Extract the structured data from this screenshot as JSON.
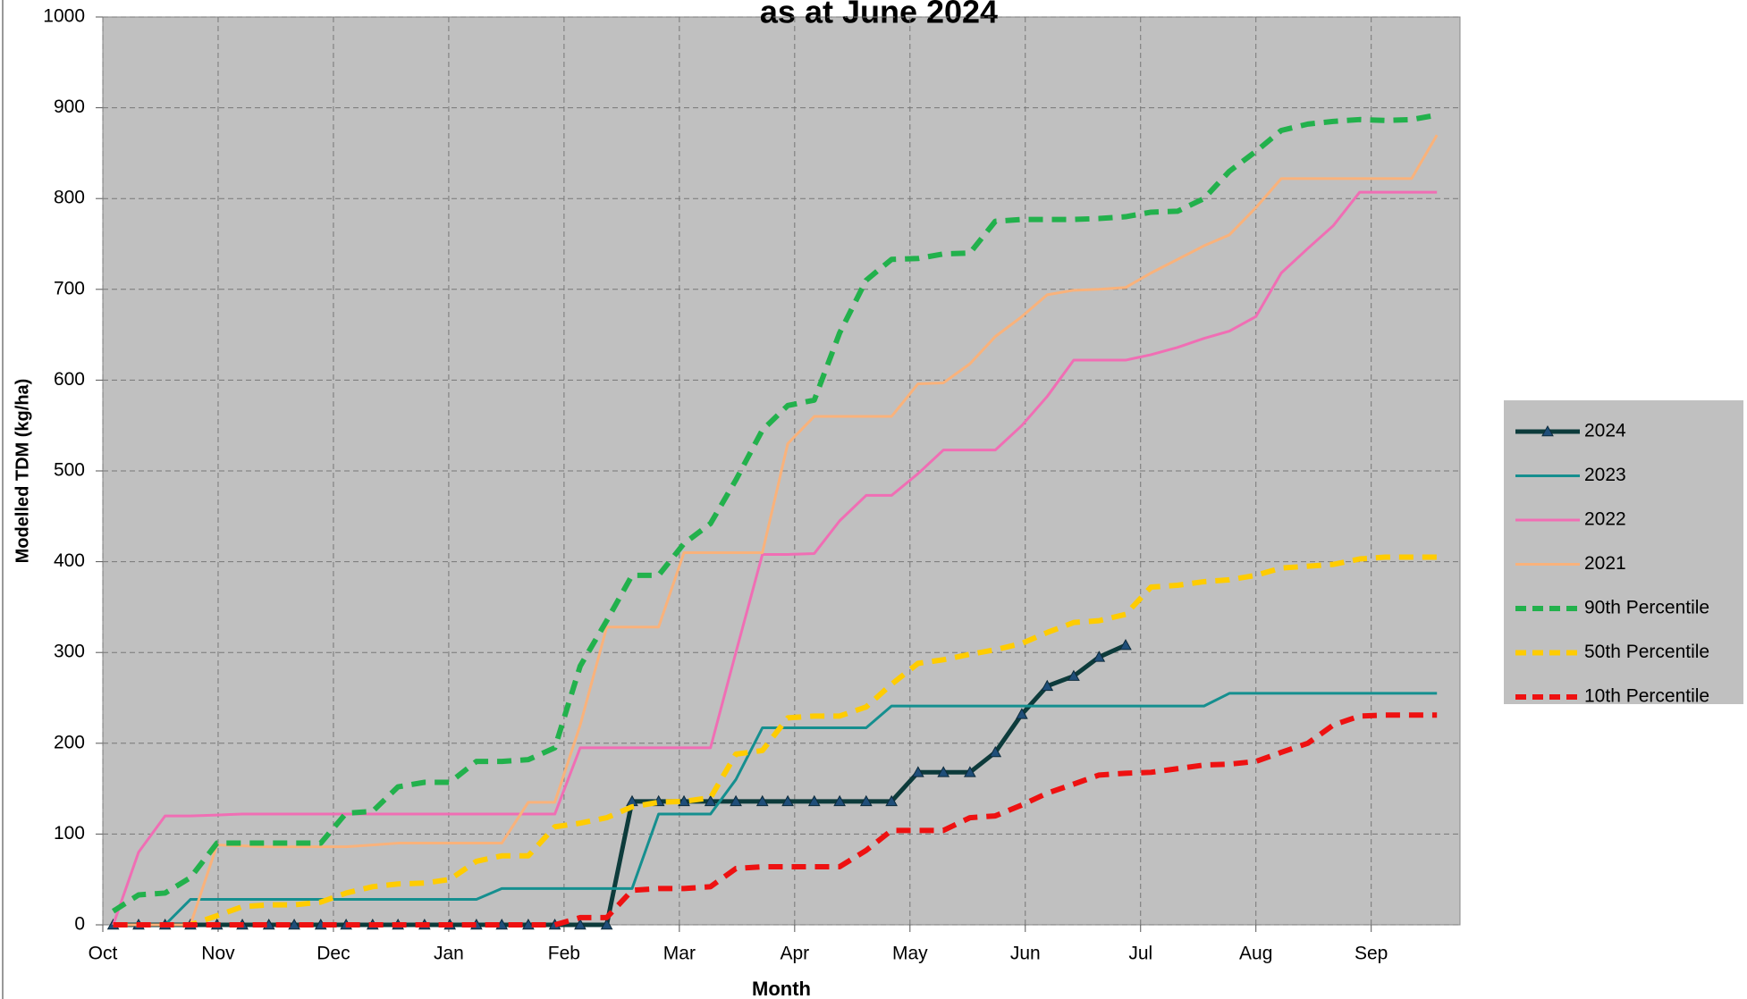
{
  "chart_data": {
    "type": "line",
    "title": "as at June 2024",
    "x_label": "Month",
    "y_label": "Modelled TDM (kg/ha)",
    "x": [
      0.09,
      0.31,
      0.54,
      0.76,
      0.99,
      1.21,
      1.44,
      1.66,
      1.89,
      2.11,
      2.34,
      2.56,
      2.79,
      3.01,
      3.24,
      3.46,
      3.69,
      3.92,
      4.14,
      4.37,
      4.59,
      4.82,
      5.04,
      5.27,
      5.49,
      5.72,
      5.94,
      6.17,
      6.39,
      6.62,
      6.84,
      7.07,
      7.29,
      7.52,
      7.74,
      7.97,
      8.19,
      8.42,
      8.64,
      8.87,
      9.09,
      9.32,
      9.55,
      9.77,
      10.0,
      10.22,
      10.45,
      10.67,
      10.9,
      11.12,
      11.35,
      11.57
    ],
    "xlim": [
      0,
      11.77
    ],
    "xticks": [
      {
        "value": 0,
        "label": "Oct"
      },
      {
        "value": 1,
        "label": "Nov"
      },
      {
        "value": 2,
        "label": "Dec"
      },
      {
        "value": 3,
        "label": "Jan"
      },
      {
        "value": 4,
        "label": "Feb"
      },
      {
        "value": 5,
        "label": "Mar"
      },
      {
        "value": 6,
        "label": "Apr"
      },
      {
        "value": 7,
        "label": "May"
      },
      {
        "value": 8,
        "label": "Jun"
      },
      {
        "value": 9,
        "label": "Jul"
      },
      {
        "value": 10,
        "label": "Aug"
      },
      {
        "value": 11,
        "label": "Sep"
      }
    ],
    "ylim": [
      0,
      1000
    ],
    "yticks": [
      0,
      100,
      200,
      300,
      400,
      500,
      600,
      700,
      800,
      900,
      1000
    ],
    "grid": true,
    "legend": "right",
    "series": [
      {
        "name": "2024",
        "color": "#0d3b3b",
        "width": 5,
        "dash": false,
        "marker": "triangle",
        "marker_color": "#1f4e79",
        "values": [
          0,
          0,
          0,
          0,
          0,
          0,
          0,
          0,
          0,
          0,
          0,
          0,
          0,
          0,
          0,
          0,
          0,
          0,
          0,
          0,
          136,
          136,
          136,
          136,
          136,
          136,
          136,
          136,
          136,
          136,
          136,
          168,
          168,
          168,
          190,
          232,
          263,
          274,
          295,
          308,
          null,
          null,
          null,
          null,
          null,
          null,
          null,
          null,
          null,
          null,
          null,
          null
        ]
      },
      {
        "name": "2023",
        "color": "#158f8f",
        "width": 3,
        "dash": false,
        "values": [
          0,
          0,
          0,
          28,
          28,
          28,
          28,
          28,
          28,
          28,
          28,
          28,
          28,
          28,
          28,
          40,
          40,
          40,
          40,
          40,
          40,
          122,
          122,
          122,
          160,
          217,
          217,
          217,
          217,
          217,
          241,
          241,
          241,
          241,
          241,
          241,
          241,
          241,
          241,
          241,
          241,
          241,
          241,
          255,
          255,
          255,
          255,
          255,
          255,
          255,
          255,
          255
        ]
      },
      {
        "name": "2022",
        "color": "#f06eb4",
        "width": 3,
        "dash": false,
        "values": [
          0,
          80,
          120,
          120,
          121,
          122,
          122,
          122,
          122,
          122,
          122,
          122,
          122,
          122,
          122,
          122,
          122,
          122,
          195,
          195,
          195,
          195,
          195,
          195,
          300,
          408,
          408,
          409,
          445,
          473,
          473,
          497,
          523,
          523,
          523,
          550,
          582,
          622,
          622,
          622,
          628,
          636,
          646,
          654,
          670,
          718,
          745,
          770,
          807,
          807,
          807,
          807
        ]
      },
      {
        "name": "2021",
        "color": "#f9b27b",
        "width": 3,
        "dash": false,
        "values": [
          0,
          0,
          0,
          0,
          88,
          87,
          86,
          86,
          86,
          86,
          88,
          90,
          90,
          90,
          90,
          90,
          135,
          135,
          220,
          328,
          328,
          328,
          410,
          410,
          410,
          410,
          530,
          560,
          560,
          560,
          560,
          596,
          597,
          618,
          648,
          670,
          694,
          699,
          700,
          702,
          718,
          733,
          748,
          760,
          790,
          822,
          822,
          822,
          822,
          822,
          822,
          870
        ]
      },
      {
        "name": "90th Percentile",
        "color": "#22b14c",
        "width": 6,
        "dash": true,
        "values": [
          15,
          33,
          35,
          52,
          90,
          90,
          90,
          90,
          90,
          123,
          125,
          152,
          157,
          157,
          180,
          180,
          182,
          195,
          285,
          335,
          385,
          385,
          420,
          442,
          490,
          545,
          572,
          578,
          652,
          710,
          733,
          734,
          739,
          740,
          775,
          777,
          777,
          777,
          778,
          780,
          785,
          786,
          800,
          830,
          852,
          875,
          882,
          885,
          887,
          886,
          887,
          892
        ]
      },
      {
        "name": "50th Percentile",
        "color": "#ffcc00",
        "width": 6,
        "dash": true,
        "values": [
          0,
          0,
          0,
          0,
          10,
          20,
          22,
          22,
          25,
          35,
          42,
          45,
          46,
          50,
          70,
          76,
          76,
          108,
          112,
          118,
          130,
          135,
          136,
          140,
          188,
          192,
          228,
          230,
          230,
          240,
          265,
          288,
          292,
          298,
          303,
          310,
          322,
          333,
          335,
          342,
          372,
          374,
          378,
          380,
          385,
          393,
          395,
          397,
          403,
          405,
          405,
          405
        ]
      },
      {
        "name": "10th Percentile",
        "color": "#ee1111",
        "width": 6,
        "dash": true,
        "values": [
          0,
          0,
          0,
          0,
          0,
          0,
          0,
          0,
          0,
          0,
          0,
          0,
          0,
          0,
          0,
          0,
          0,
          0,
          8,
          8,
          38,
          40,
          40,
          42,
          62,
          64,
          64,
          64,
          64,
          82,
          104,
          104,
          104,
          118,
          120,
          132,
          145,
          155,
          165,
          167,
          168,
          172,
          176,
          177,
          180,
          190,
          200,
          220,
          230,
          231,
          231,
          231
        ]
      }
    ]
  }
}
